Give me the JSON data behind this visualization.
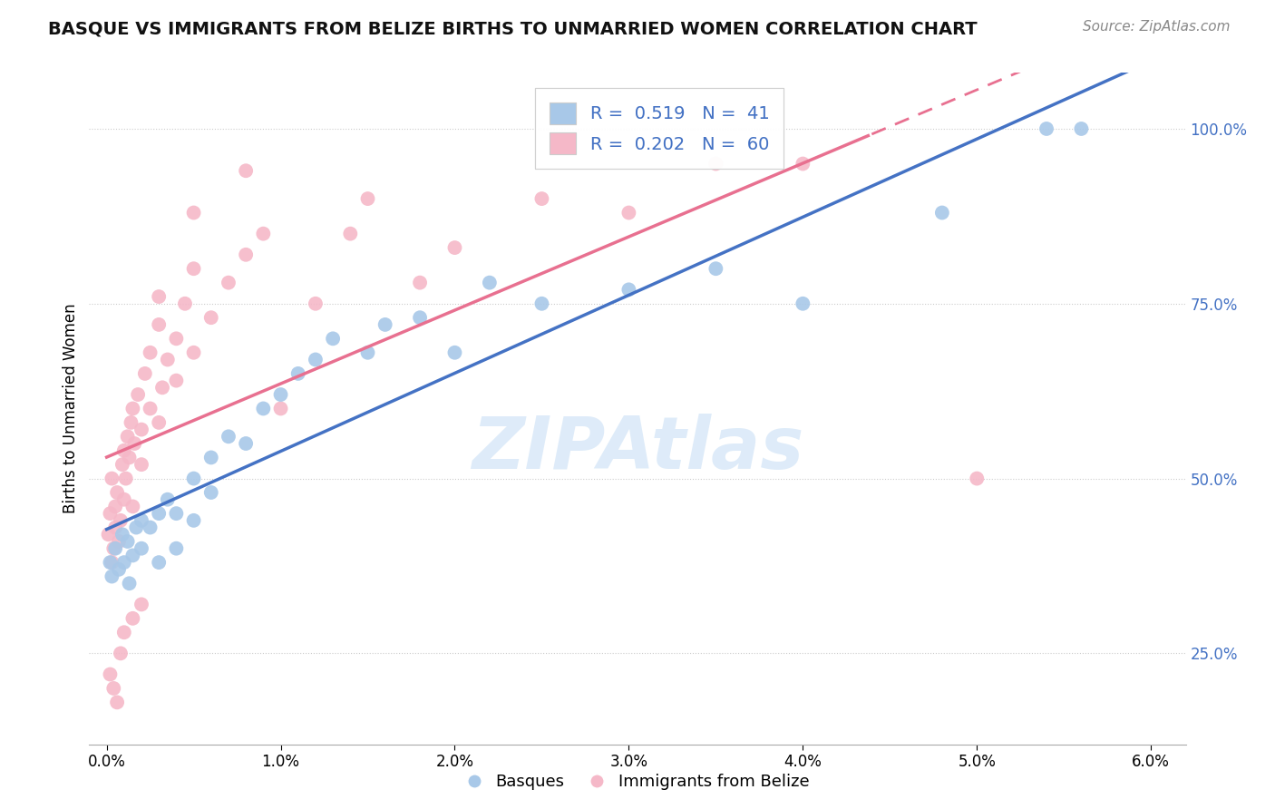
{
  "title": "BASQUE VS IMMIGRANTS FROM BELIZE BIRTHS TO UNMARRIED WOMEN CORRELATION CHART",
  "source": "Source: ZipAtlas.com",
  "ylabel": "Births to Unmarried Women",
  "xlim": [
    -0.001,
    0.062
  ],
  "ylim": [
    0.12,
    1.08
  ],
  "xticks": [
    0.0,
    0.01,
    0.02,
    0.03,
    0.04,
    0.05,
    0.06
  ],
  "xtick_labels": [
    "0.0%",
    "1.0%",
    "2.0%",
    "3.0%",
    "4.0%",
    "5.0%",
    "6.0%"
  ],
  "ytick_grid": [
    0.25,
    0.5,
    0.75,
    1.0
  ],
  "ytick_labels": [
    "25.0%",
    "50.0%",
    "75.0%",
    "100.0%"
  ],
  "blue_R": "0.519",
  "blue_N": "41",
  "pink_R": "0.202",
  "pink_N": "60",
  "blue_color": "#a8c8e8",
  "pink_color": "#f5b8c8",
  "blue_line_color": "#4472c4",
  "pink_line_color": "#e87090",
  "grid_color": "#cccccc",
  "watermark": "ZIPAtlas",
  "watermark_color": "#c8dff5",
  "title_fontsize": 14,
  "axis_label_fontsize": 12,
  "tick_fontsize": 12,
  "legend_fontsize": 14,
  "blue_x": [
    0.0002,
    0.0003,
    0.0005,
    0.0007,
    0.0009,
    0.001,
    0.0012,
    0.0013,
    0.0015,
    0.0017,
    0.002,
    0.002,
    0.0025,
    0.003,
    0.003,
    0.0035,
    0.004,
    0.004,
    0.005,
    0.005,
    0.006,
    0.006,
    0.007,
    0.008,
    0.009,
    0.01,
    0.011,
    0.012,
    0.013,
    0.015,
    0.016,
    0.018,
    0.02,
    0.022,
    0.025,
    0.03,
    0.035,
    0.04,
    0.048,
    0.054,
    0.056
  ],
  "blue_y": [
    0.38,
    0.36,
    0.4,
    0.37,
    0.42,
    0.38,
    0.41,
    0.35,
    0.39,
    0.43,
    0.44,
    0.4,
    0.43,
    0.45,
    0.38,
    0.47,
    0.45,
    0.4,
    0.5,
    0.44,
    0.53,
    0.48,
    0.56,
    0.55,
    0.6,
    0.62,
    0.65,
    0.67,
    0.7,
    0.68,
    0.72,
    0.73,
    0.68,
    0.78,
    0.75,
    0.77,
    0.8,
    0.75,
    0.88,
    1.0,
    1.0
  ],
  "pink_x": [
    0.0001,
    0.0002,
    0.0003,
    0.0003,
    0.0004,
    0.0005,
    0.0005,
    0.0006,
    0.0007,
    0.0008,
    0.0009,
    0.001,
    0.001,
    0.0011,
    0.0012,
    0.0013,
    0.0014,
    0.0015,
    0.0015,
    0.0016,
    0.0018,
    0.002,
    0.002,
    0.0022,
    0.0025,
    0.0025,
    0.003,
    0.003,
    0.0032,
    0.0035,
    0.004,
    0.004,
    0.0045,
    0.005,
    0.005,
    0.006,
    0.007,
    0.008,
    0.009,
    0.01,
    0.012,
    0.014,
    0.015,
    0.018,
    0.02,
    0.025,
    0.03,
    0.035,
    0.04,
    0.05,
    0.0002,
    0.0004,
    0.0006,
    0.0008,
    0.001,
    0.0015,
    0.002,
    0.003,
    0.005,
    0.008
  ],
  "pink_y": [
    0.42,
    0.45,
    0.38,
    0.5,
    0.4,
    0.43,
    0.46,
    0.48,
    0.41,
    0.44,
    0.52,
    0.47,
    0.54,
    0.5,
    0.56,
    0.53,
    0.58,
    0.46,
    0.6,
    0.55,
    0.62,
    0.52,
    0.57,
    0.65,
    0.6,
    0.68,
    0.72,
    0.58,
    0.63,
    0.67,
    0.7,
    0.64,
    0.75,
    0.8,
    0.68,
    0.73,
    0.78,
    0.82,
    0.85,
    0.6,
    0.75,
    0.85,
    0.9,
    0.78,
    0.83,
    0.9,
    0.88,
    0.95,
    0.95,
    0.5,
    0.22,
    0.2,
    0.18,
    0.25,
    0.28,
    0.3,
    0.32,
    0.76,
    0.88,
    0.94
  ]
}
